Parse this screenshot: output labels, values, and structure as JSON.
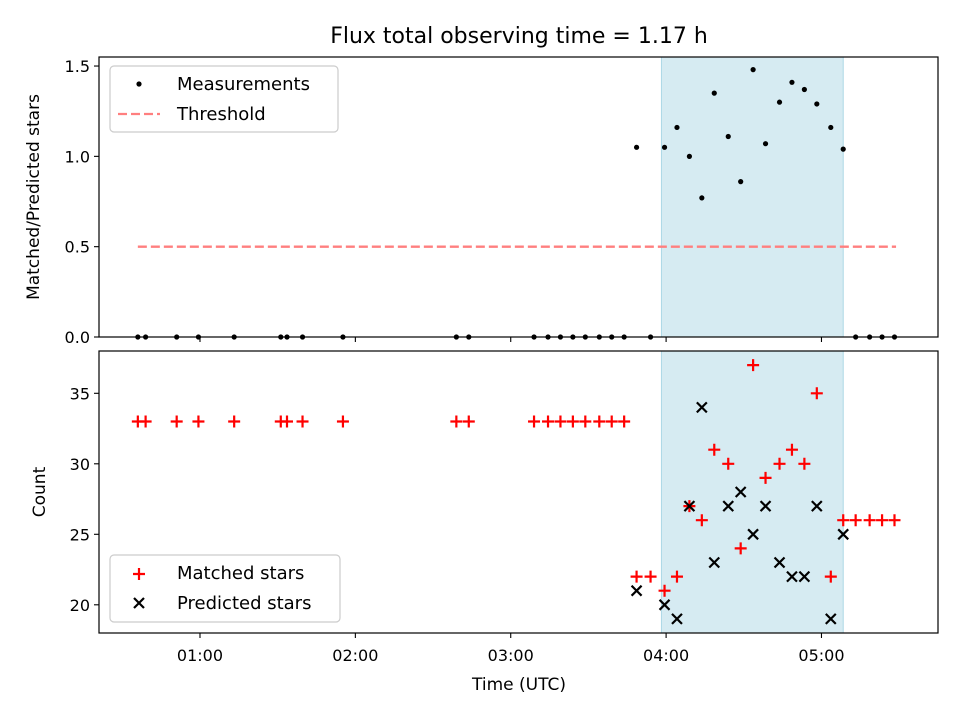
{
  "chart_data": [
    {
      "type": "scatter",
      "title": "Flux total observing time = 1.17 h",
      "ylabel": "Matched/Predicted stars",
      "xlabel": "",
      "xlim": [
        0.35,
        5.75
      ],
      "ylim": [
        0,
        1.55
      ],
      "yticks": [
        0.0,
        0.5,
        1.0,
        1.5
      ],
      "ytick_labels": [
        "0.0",
        "0.5",
        "1.0",
        "1.5"
      ],
      "shaded_span": [
        3.97,
        5.14
      ],
      "colors": {
        "measurements": "#000000",
        "threshold": "#ff7f7f",
        "span": "#add8e6"
      },
      "threshold": {
        "name": "Threshold",
        "value": 0.5,
        "x_range": [
          0.6,
          5.48
        ]
      },
      "legend": {
        "position": "upper left",
        "entries": [
          "Measurements",
          "Threshold"
        ]
      },
      "series": [
        {
          "name": "Measurements",
          "marker": "dot",
          "x": [
            0.6,
            0.65,
            0.85,
            0.99,
            1.22,
            1.52,
            1.56,
            1.66,
            1.92,
            2.65,
            2.73,
            3.15,
            3.24,
            3.32,
            3.4,
            3.48,
            3.57,
            3.65,
            3.73,
            3.81,
            3.9,
            3.99,
            4.07,
            4.15,
            4.23,
            4.31,
            4.4,
            4.48,
            4.56,
            4.64,
            4.73,
            4.81,
            4.89,
            4.97,
            5.06,
            5.14,
            5.22,
            5.31,
            5.39,
            5.47
          ],
          "y": [
            0,
            0,
            0,
            0,
            0,
            0,
            0,
            0,
            0,
            0,
            0,
            0,
            0,
            0,
            0,
            0,
            0,
            0,
            0,
            1.05,
            0,
            1.05,
            1.16,
            1.0,
            0.77,
            1.35,
            1.11,
            0.86,
            1.48,
            1.07,
            1.3,
            1.41,
            1.37,
            1.29,
            1.16,
            1.04,
            0,
            0,
            0,
            0
          ]
        }
      ]
    },
    {
      "type": "scatter",
      "title": "",
      "ylabel": "Count",
      "xlabel": "Time (UTC)",
      "xlim": [
        0.35,
        5.75
      ],
      "ylim": [
        18,
        38
      ],
      "yticks": [
        20,
        25,
        30,
        35
      ],
      "ytick_labels": [
        "20",
        "25",
        "30",
        "35"
      ],
      "xticks": [
        1,
        2,
        3,
        4,
        5
      ],
      "xtick_labels": [
        "01:00",
        "02:00",
        "03:00",
        "04:00",
        "05:00"
      ],
      "shaded_span": [
        3.97,
        5.14
      ],
      "colors": {
        "matched": "#ff0000",
        "predicted": "#000000",
        "span": "#add8e6"
      },
      "legend": {
        "position": "lower left",
        "entries": [
          "Matched stars",
          "Predicted stars"
        ]
      },
      "series": [
        {
          "name": "Matched stars",
          "marker": "plus",
          "x": [
            0.6,
            0.65,
            0.85,
            0.99,
            1.22,
            1.52,
            1.56,
            1.66,
            1.92,
            2.65,
            2.73,
            3.15,
            3.24,
            3.32,
            3.4,
            3.48,
            3.57,
            3.65,
            3.73,
            3.81,
            3.9,
            3.99,
            4.07,
            4.15,
            4.23,
            4.31,
            4.4,
            4.48,
            4.56,
            4.64,
            4.73,
            4.81,
            4.89,
            4.97,
            5.06,
            5.14,
            5.22,
            5.31,
            5.39,
            5.47
          ],
          "y": [
            33,
            33,
            33,
            33,
            33,
            33,
            33,
            33,
            33,
            33,
            33,
            33,
            33,
            33,
            33,
            33,
            33,
            33,
            33,
            22,
            22,
            21,
            22,
            27,
            26,
            31,
            30,
            24,
            37,
            29,
            30,
            31,
            30,
            35,
            22,
            26,
            26,
            26,
            26,
            26
          ]
        },
        {
          "name": "Predicted stars",
          "marker": "x",
          "x": [
            3.81,
            3.99,
            4.07,
            4.15,
            4.23,
            4.31,
            4.4,
            4.48,
            4.56,
            4.64,
            4.73,
            4.81,
            4.89,
            4.97,
            5.06,
            5.14
          ],
          "y": [
            21,
            20,
            19,
            27,
            34,
            23,
            27,
            28,
            25,
            27,
            23,
            22,
            22,
            27,
            19,
            25
          ]
        }
      ]
    }
  ]
}
